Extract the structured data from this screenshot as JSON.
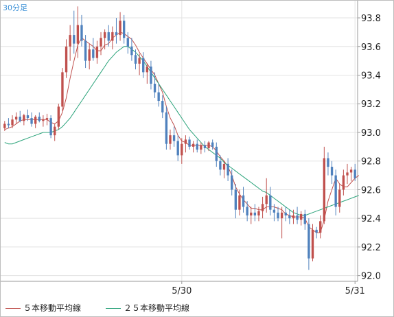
{
  "timeframe_label": "30分足",
  "legend": [
    {
      "label": "５本移動平均線",
      "color": "#c0504d"
    },
    {
      "label": "２５本移動平均線",
      "color": "#2aa37a"
    }
  ],
  "colors": {
    "up": "#c0504d",
    "down": "#4f81bd",
    "ma5": "#c0504d",
    "ma25": "#2aa37a",
    "grid": "#e3e3e3"
  },
  "chart_data": {
    "type": "candlestick",
    "title": "",
    "xlabel": "",
    "ylabel": "",
    "ylim": [
      91.96,
      93.92
    ],
    "yticks": [
      92.0,
      92.2,
      92.4,
      92.6,
      92.8,
      93.0,
      93.2,
      93.4,
      93.6,
      93.8
    ],
    "ytick_labels": [
      "92.0",
      "92.2",
      "92.4",
      "92.6",
      "92.8",
      "93.0",
      "93.2",
      "93.4",
      "93.6",
      "93.8"
    ],
    "x_ticks": [
      {
        "index": 46,
        "label": "5/30"
      },
      {
        "index": 91,
        "label": "5/31"
      }
    ],
    "grid": true,
    "legend_position": "bottom",
    "ohlc": [
      [
        93.03,
        93.08,
        93.01,
        93.06
      ],
      [
        93.06,
        93.1,
        93.03,
        93.05
      ],
      [
        93.05,
        93.12,
        93.03,
        93.09
      ],
      [
        93.09,
        93.14,
        93.06,
        93.11
      ],
      [
        93.11,
        93.15,
        93.07,
        93.08
      ],
      [
        93.08,
        93.13,
        93.05,
        93.12
      ],
      [
        93.12,
        93.16,
        93.08,
        93.1
      ],
      [
        93.1,
        93.14,
        93.04,
        93.06
      ],
      [
        93.06,
        93.12,
        93.03,
        93.11
      ],
      [
        93.11,
        93.14,
        93.07,
        93.08
      ],
      [
        93.08,
        93.12,
        93.04,
        93.09
      ],
      [
        93.09,
        93.13,
        93.05,
        93.1
      ],
      [
        93.1,
        93.12,
        92.96,
        92.98
      ],
      [
        92.98,
        93.06,
        92.94,
        93.04
      ],
      [
        93.04,
        93.2,
        93.02,
        93.18
      ],
      [
        93.18,
        93.45,
        93.15,
        93.42
      ],
      [
        93.42,
        93.65,
        93.38,
        93.6
      ],
      [
        93.6,
        93.75,
        93.5,
        93.68
      ],
      [
        93.68,
        93.85,
        93.55,
        93.62
      ],
      [
        93.62,
        93.88,
        93.52,
        93.75
      ],
      [
        93.75,
        93.82,
        93.6,
        93.64
      ],
      [
        93.64,
        93.68,
        93.45,
        93.5
      ],
      [
        93.5,
        93.62,
        93.44,
        93.58
      ],
      [
        93.58,
        93.66,
        93.5,
        93.52
      ],
      [
        93.52,
        93.64,
        93.48,
        93.6
      ],
      [
        93.6,
        93.7,
        93.54,
        93.66
      ],
      [
        93.66,
        93.72,
        93.58,
        93.7
      ],
      [
        93.7,
        93.75,
        93.6,
        93.64
      ],
      [
        93.64,
        93.74,
        93.58,
        93.7
      ],
      [
        93.7,
        93.8,
        93.62,
        93.68
      ],
      [
        93.68,
        93.84,
        93.64,
        93.78
      ],
      [
        93.78,
        93.82,
        93.62,
        93.66
      ],
      [
        93.66,
        93.7,
        93.55,
        93.6
      ],
      [
        93.6,
        93.66,
        93.5,
        93.54
      ],
      [
        93.54,
        93.58,
        93.44,
        93.48
      ],
      [
        93.48,
        93.55,
        93.4,
        93.52
      ],
      [
        93.52,
        93.56,
        93.38,
        93.42
      ],
      [
        93.42,
        93.48,
        93.34,
        93.46
      ],
      [
        93.46,
        93.5,
        93.3,
        93.34
      ],
      [
        93.34,
        93.42,
        93.24,
        93.28
      ],
      [
        93.28,
        93.34,
        93.18,
        93.22
      ],
      [
        93.22,
        93.26,
        93.1,
        93.14
      ],
      [
        93.14,
        93.18,
        92.88,
        92.92
      ],
      [
        92.92,
        93.02,
        92.88,
        92.98
      ],
      [
        92.98,
        93.04,
        92.9,
        92.94
      ],
      [
        92.94,
        92.98,
        92.8,
        92.84
      ],
      [
        92.84,
        92.96,
        92.78,
        92.92
      ],
      [
        92.92,
        92.98,
        92.86,
        92.95
      ],
      [
        92.95,
        92.97,
        92.88,
        92.9
      ],
      [
        92.9,
        92.94,
        92.86,
        92.92
      ],
      [
        92.92,
        92.95,
        92.86,
        92.88
      ],
      [
        92.88,
        92.93,
        92.85,
        92.91
      ],
      [
        92.91,
        92.94,
        92.86,
        92.89
      ],
      [
        92.89,
        92.94,
        92.87,
        92.93
      ],
      [
        92.93,
        92.95,
        92.88,
        92.9
      ],
      [
        92.9,
        92.93,
        92.76,
        92.8
      ],
      [
        92.8,
        92.84,
        92.7,
        92.74
      ],
      [
        92.74,
        92.8,
        92.68,
        92.78
      ],
      [
        92.78,
        92.82,
        92.66,
        92.7
      ],
      [
        92.7,
        92.74,
        92.56,
        92.6
      ],
      [
        92.6,
        92.64,
        92.4,
        92.46
      ],
      [
        92.46,
        92.6,
        92.42,
        92.56
      ],
      [
        92.56,
        92.62,
        92.44,
        92.48
      ],
      [
        92.48,
        92.52,
        92.38,
        92.42
      ],
      [
        92.42,
        92.48,
        92.36,
        92.44
      ],
      [
        92.44,
        92.5,
        92.38,
        92.42
      ],
      [
        92.42,
        92.48,
        92.38,
        92.45
      ],
      [
        92.45,
        92.55,
        92.4,
        92.5
      ],
      [
        92.5,
        92.68,
        92.44,
        92.56
      ],
      [
        92.56,
        92.62,
        92.42,
        92.46
      ],
      [
        92.46,
        92.5,
        92.38,
        92.44
      ],
      [
        92.44,
        92.48,
        92.38,
        92.4
      ],
      [
        92.4,
        92.48,
        92.26,
        92.44
      ],
      [
        92.44,
        92.48,
        92.38,
        92.42
      ],
      [
        92.42,
        92.46,
        92.36,
        92.4
      ],
      [
        92.4,
        92.46,
        92.36,
        92.42
      ],
      [
        92.42,
        92.48,
        92.36,
        92.39
      ],
      [
        92.39,
        92.45,
        92.35,
        92.43
      ],
      [
        92.43,
        92.46,
        92.32,
        92.36
      ],
      [
        92.36,
        92.4,
        92.04,
        92.12
      ],
      [
        92.12,
        92.36,
        92.1,
        92.32
      ],
      [
        92.32,
        92.34,
        92.26,
        92.3
      ],
      [
        92.3,
        92.42,
        92.26,
        92.38
      ],
      [
        92.38,
        92.9,
        92.36,
        92.82
      ],
      [
        92.82,
        92.86,
        92.7,
        92.76
      ],
      [
        92.76,
        92.8,
        92.64,
        92.7
      ],
      [
        92.7,
        92.74,
        92.42,
        92.48
      ],
      [
        92.48,
        92.64,
        92.44,
        92.6
      ],
      [
        92.6,
        92.74,
        92.56,
        92.7
      ],
      [
        92.7,
        92.78,
        92.64,
        92.72
      ],
      [
        92.72,
        92.76,
        92.66,
        92.74
      ],
      [
        92.74,
        92.78,
        92.66,
        92.68
      ]
    ],
    "series": [
      {
        "name": "５本移動平均線",
        "values": [
          93.02,
          93.03,
          93.04,
          93.06,
          93.08,
          93.09,
          93.09,
          93.09,
          93.09,
          93.09,
          93.09,
          93.09,
          93.07,
          93.06,
          93.08,
          93.14,
          93.24,
          93.38,
          93.5,
          93.61,
          93.66,
          93.64,
          93.62,
          93.6,
          93.57,
          93.57,
          93.61,
          93.62,
          93.66,
          93.68,
          93.7,
          93.69,
          93.67,
          93.65,
          93.61,
          93.56,
          93.52,
          93.48,
          93.44,
          93.4,
          93.34,
          93.28,
          93.18,
          93.1,
          93.05,
          92.98,
          92.94,
          92.93,
          92.91,
          92.91,
          92.91,
          92.91,
          92.91,
          92.91,
          92.9,
          92.87,
          92.83,
          92.8,
          92.76,
          92.7,
          92.62,
          92.57,
          92.53,
          92.5,
          92.47,
          92.47,
          92.46,
          92.46,
          92.48,
          92.48,
          92.48,
          92.47,
          92.46,
          92.43,
          92.42,
          92.41,
          92.41,
          92.41,
          92.4,
          92.34,
          92.32,
          92.3,
          92.3,
          92.39,
          92.52,
          92.6,
          92.68,
          92.64,
          92.62,
          92.62,
          92.65,
          92.68,
          92.7
        ]
      },
      {
        "name": "２５本移動平均線",
        "values": [
          92.93,
          92.92,
          92.92,
          92.93,
          92.94,
          92.95,
          92.96,
          92.97,
          92.98,
          92.99,
          93.0,
          93.0,
          93.0,
          93.01,
          93.02,
          93.04,
          93.07,
          93.1,
          93.14,
          93.18,
          93.22,
          93.26,
          93.3,
          93.34,
          93.38,
          93.42,
          93.46,
          93.5,
          93.53,
          93.56,
          93.58,
          93.6,
          93.6,
          93.58,
          93.56,
          93.53,
          93.5,
          93.46,
          93.42,
          93.38,
          93.34,
          93.3,
          93.26,
          93.22,
          93.18,
          93.14,
          93.1,
          93.06,
          93.02,
          92.99,
          92.96,
          92.93,
          92.9,
          92.88,
          92.86,
          92.84,
          92.82,
          92.79,
          92.77,
          92.75,
          92.73,
          92.71,
          92.69,
          92.67,
          92.65,
          92.63,
          92.61,
          92.59,
          92.58,
          92.56,
          92.54,
          92.52,
          92.5,
          92.48,
          92.46,
          92.44,
          92.43,
          92.42,
          92.42,
          92.43,
          92.44,
          92.45,
          92.46,
          92.47,
          92.48,
          92.49,
          92.5,
          92.51,
          92.52,
          92.53,
          92.54,
          92.55,
          92.56
        ]
      }
    ]
  }
}
